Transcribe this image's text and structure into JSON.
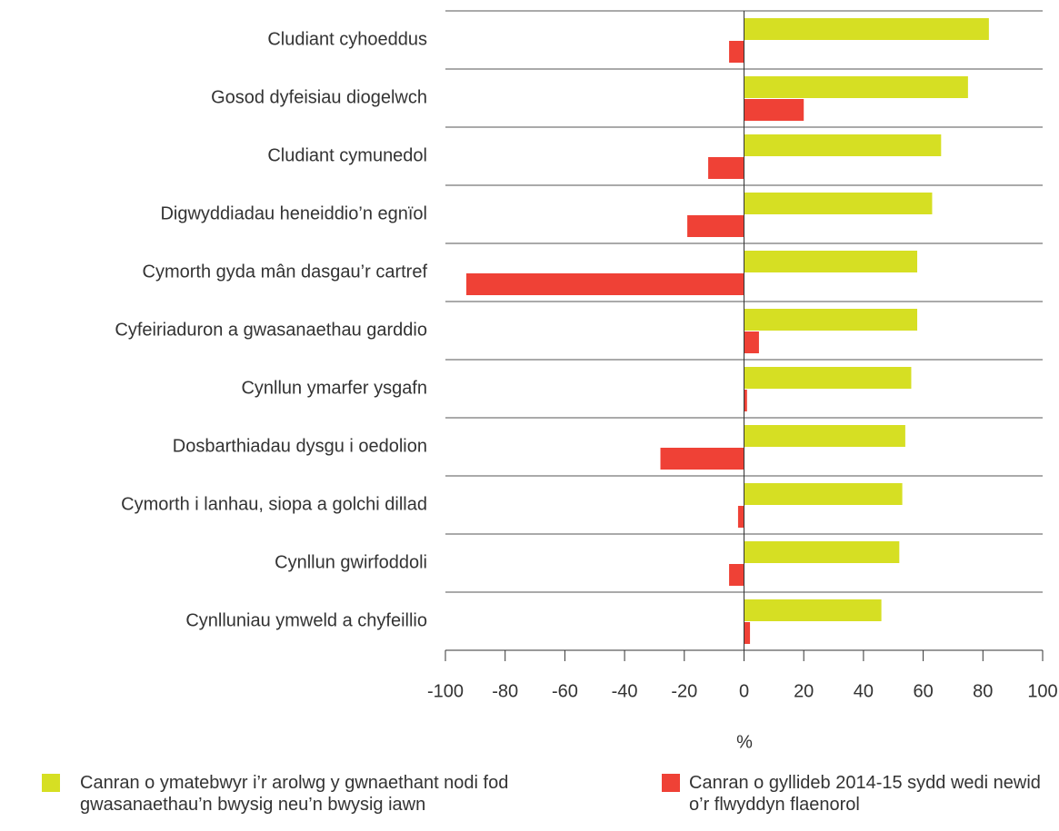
{
  "chart_data": {
    "type": "barh",
    "categories": [
      "Cludiant cyhoeddus",
      "Gosod dyfeisiau diogelwch",
      "Cludiant cymunedol",
      "Digwyddiadau heneiddio’n egnïol",
      "Cymorth gyda mân dasgau’r cartref",
      "Cyfeiriaduron a gwasanaethau garddio",
      "Cynllun ymarfer ysgafn",
      "Dosbarthiadau dysgu i oedolion",
      "Cymorth i lanhau, siopa a golchi dillad",
      "Cynllun gwirfoddoli",
      "Cynlluniau ymweld a chyfeillio"
    ],
    "series": [
      {
        "name": "Canran o ymatebwyr i’r arolwg y gwnaethant nodi fod gwasanaethau’n bwysig neu’n bwysig iawn",
        "color": "#d6df23",
        "values": [
          82,
          75,
          66,
          63,
          58,
          58,
          56,
          54,
          53,
          52,
          46
        ]
      },
      {
        "name": "Canran o gyllideb 2014-15 sydd wedi newid o’r flwyddyn flaenorol",
        "color": "#ef4136",
        "values": [
          -5,
          20,
          -12,
          -19,
          -93,
          5,
          1,
          -28,
          -2,
          -5,
          2
        ]
      }
    ],
    "xlabel": "%",
    "xlim": [
      -100,
      100
    ],
    "xticks": [
      -100,
      -80,
      -60,
      -40,
      -20,
      0,
      20,
      40,
      60,
      80,
      100
    ]
  }
}
